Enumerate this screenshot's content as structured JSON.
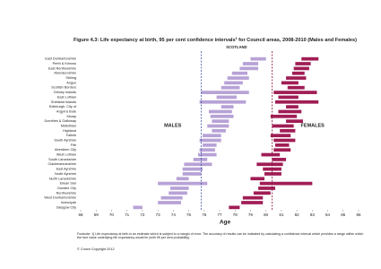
{
  "chart_data": {
    "type": "interval",
    "title": {
      "start": "Figure 4.3: Life expectancy at birth, 95 per cent confidence intervals",
      "marker": "1",
      "end": " for Council areas, 2008-2010 (Males and Females)"
    },
    "reference_label": "SCOTLAND",
    "reference_lines": [
      {
        "value": 75.8,
        "color": "#3b4fa0"
      },
      {
        "value": 80.4,
        "color": "#8a1538"
      }
    ],
    "x_label": "Age",
    "categories": [
      "East Dunbartonshire",
      "Perth & Kinross",
      "East Renfrewshire",
      "Aberdeenshire",
      "Stirling",
      "Angus",
      "Scottish Borders",
      "Orkney Islands",
      "East Lothian",
      "Shetland Islands",
      "Edinburgh, City of",
      "Argyll & Bute",
      "Moray",
      "Dumfries & Galloway",
      "Midlothian",
      "Highland",
      "Falkirk",
      "South Ayrshire",
      "Fife",
      "Aberdeen City",
      "West Lothian",
      "South Lanarkshire",
      "Clackmannanshire",
      "East Ayrshire",
      "North Ayrshire",
      "North Lanarkshire",
      "Eilean Siar",
      "Dundee City",
      "Renfrewshire",
      "West Dunbartonshire",
      "Inverclyde",
      "Glasgow City"
    ],
    "series": [
      {
        "name": "MALES",
        "color": "#b7a2d6",
        "values": [
          [
            79.0,
            80.0
          ],
          [
            78.5,
            79.5
          ],
          [
            78.3,
            79.5
          ],
          [
            77.8,
            78.8
          ],
          [
            77.5,
            78.9
          ],
          [
            77.3,
            78.5
          ],
          [
            77.1,
            78.3
          ],
          [
            75.8,
            78.9
          ],
          [
            76.8,
            78.1
          ],
          [
            75.7,
            78.7
          ],
          [
            77.1,
            77.9
          ],
          [
            76.3,
            77.8
          ],
          [
            76.4,
            77.9
          ],
          [
            76.5,
            77.6
          ],
          [
            76.2,
            77.6
          ],
          [
            76.5,
            77.4
          ],
          [
            75.9,
            77.1
          ],
          [
            75.7,
            77.1
          ],
          [
            75.9,
            76.8
          ],
          [
            75.7,
            76.7
          ],
          [
            75.6,
            76.8
          ],
          [
            75.3,
            76.2
          ],
          [
            74.7,
            76.5
          ],
          [
            74.6,
            75.9
          ],
          [
            74.6,
            75.8
          ],
          [
            74.2,
            75.0
          ],
          [
            73.0,
            76.2
          ],
          [
            73.8,
            75.0
          ],
          [
            73.7,
            74.9
          ],
          [
            73.2,
            74.6
          ],
          [
            73.0,
            74.5
          ],
          [
            71.4,
            72.0
          ]
        ]
      },
      {
        "name": "FEMALES",
        "color": "#a01d55",
        "values": [
          [
            82.3,
            83.4
          ],
          [
            81.9,
            82.9
          ],
          [
            81.8,
            82.8
          ],
          [
            81.7,
            82.5
          ],
          [
            81.3,
            82.6
          ],
          [
            81.0,
            82.1
          ],
          [
            81.4,
            82.5
          ],
          [
            80.5,
            83.3
          ],
          [
            80.8,
            82.1
          ],
          [
            80.6,
            83.4
          ],
          [
            81.3,
            82.1
          ],
          [
            80.8,
            82.3
          ],
          [
            80.3,
            82.0
          ],
          [
            81.3,
            82.4
          ],
          [
            80.4,
            81.8
          ],
          [
            80.9,
            81.9
          ],
          [
            80.3,
            81.6
          ],
          [
            80.5,
            81.9
          ],
          [
            80.6,
            81.5
          ],
          [
            80.5,
            81.6
          ],
          [
            79.7,
            80.9
          ],
          [
            80.4,
            81.3
          ],
          [
            79.4,
            81.1
          ],
          [
            79.8,
            81.0
          ],
          [
            79.9,
            81.0
          ],
          [
            79.0,
            79.9
          ],
          [
            79.6,
            83.0
          ],
          [
            79.5,
            80.6
          ],
          [
            79.2,
            80.3
          ],
          [
            78.5,
            79.8
          ],
          [
            78.4,
            79.8
          ],
          [
            77.6,
            78.3
          ]
        ]
      }
    ],
    "xlim": [
      68,
      86
    ],
    "xticks": [
      68,
      69,
      70,
      71,
      72,
      73,
      74,
      75,
      76,
      77,
      78,
      79,
      80,
      81,
      82,
      83,
      84,
      85,
      86
    ],
    "footnote": "Footnote: 1) Life expectancy at birth is an estimate which is subject to a margin of error. The accuracy of results can be indicated by calculating a confidence interval which provides a range within which the true value underlying life expectancy would lie (with 95 per cent probability).",
    "copyright": "© Crown Copyright 2012"
  }
}
